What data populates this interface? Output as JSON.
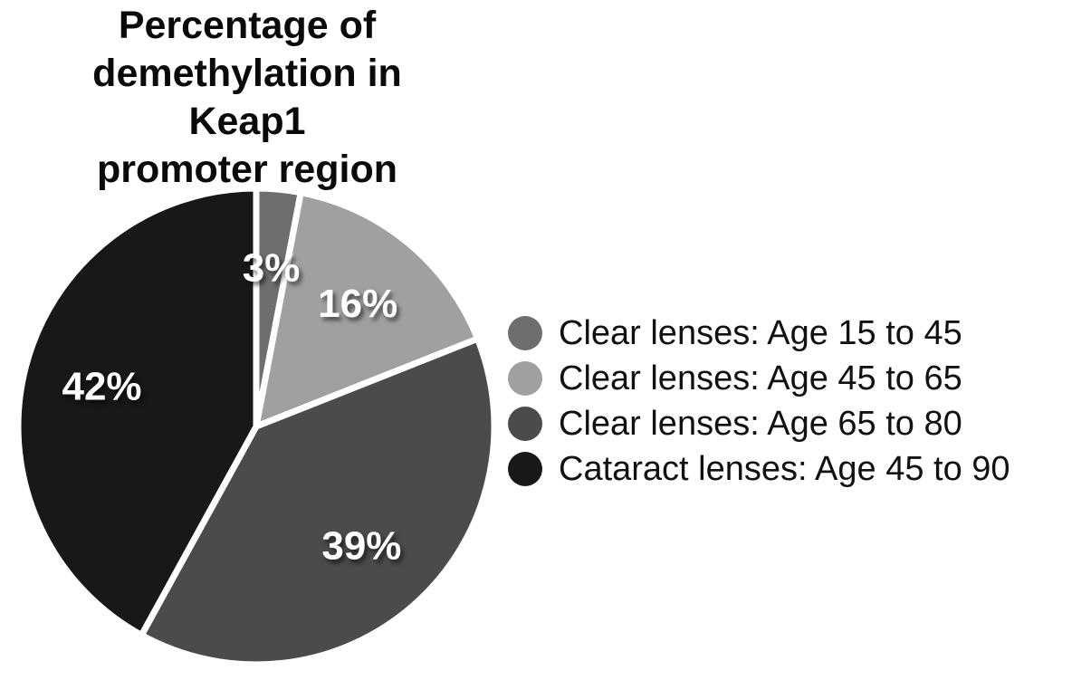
{
  "chart_data": {
    "type": "pie",
    "title": "Percentage of demethylation in Keap1 promoter region",
    "title_lines": [
      "Percentage of",
      "demethylation in Keap1",
      "promoter region"
    ],
    "start_angle_deg": 0,
    "direction": "clockwise",
    "separator_color": "#ffffff",
    "label_color": "#ffffff",
    "legend_position": "right",
    "slices": [
      {
        "label": "Clear lenses: Age 15 to 45",
        "value": 3,
        "display": "3%",
        "color": "#6e6e6e"
      },
      {
        "label": "Clear lenses: Age 45 to 65",
        "value": 16,
        "display": "16%",
        "color": "#a0a0a0"
      },
      {
        "label": "Clear lenses: Age 65 to 80",
        "value": 39,
        "display": "39%",
        "color": "#4b4b4b"
      },
      {
        "label": "Cataract lenses: Age 45 to 90",
        "value": 42,
        "display": "42%",
        "color": "#181818"
      }
    ]
  }
}
